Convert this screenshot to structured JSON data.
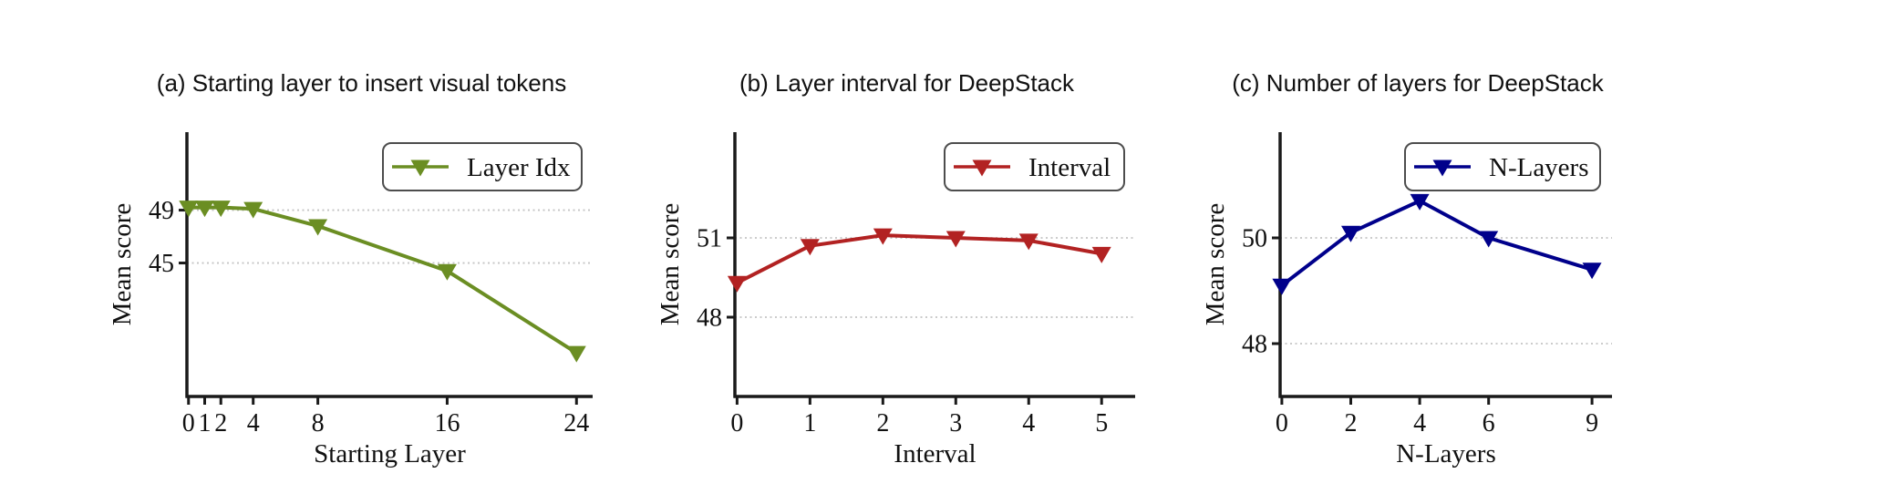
{
  "figure": {
    "background": "#ffffff",
    "axis_color": "#1a1a1a",
    "grid_color": "#c4c4c4",
    "legend_border_color": "#4d4d4d",
    "text_color": "#111111"
  },
  "chart_data": [
    {
      "type": "line",
      "panel": "a",
      "title": "(a) Starting layer to insert visual tokens",
      "xlabel": "Starting Layer",
      "ylabel": "Mean score",
      "x": [
        0,
        1,
        2,
        4,
        8,
        16,
        24
      ],
      "series": [
        {
          "name": "Layer Idx",
          "values": [
            49.2,
            49.2,
            49.2,
            49.1,
            47.8,
            44.4,
            38.2
          ]
        }
      ],
      "xticks": [
        0,
        1,
        2,
        4,
        8,
        16,
        24
      ],
      "yticks": [
        49,
        45
      ],
      "xlim": [
        -0.1,
        25.0
      ],
      "ylim": [
        34.9,
        54.9
      ],
      "color": "#6b8e23",
      "marker": "triangle-down",
      "grid": "horizontal-dashed",
      "legend_position": "upper-right"
    },
    {
      "type": "line",
      "panel": "b",
      "title": "(b) Layer interval for DeepStack",
      "xlabel": "Interval",
      "ylabel": "Mean score",
      "x": [
        0,
        1,
        2,
        3,
        4,
        5
      ],
      "series": [
        {
          "name": "Interval",
          "values": [
            49.3,
            50.7,
            51.1,
            51.0,
            50.9,
            50.4
          ]
        }
      ],
      "xticks": [
        0,
        1,
        2,
        3,
        4,
        5
      ],
      "yticks": [
        51,
        48
      ],
      "xlim": [
        -0.03,
        5.46
      ],
      "ylim": [
        45.0,
        55.0
      ],
      "color": "#b22222",
      "marker": "triangle-down",
      "grid": "horizontal-dashed",
      "legend_position": "upper-right"
    },
    {
      "type": "line",
      "panel": "c",
      "title": "(c) Number of layers for DeepStack",
      "xlabel": "N-Layers",
      "ylabel": "Mean score",
      "x": [
        0,
        2,
        4,
        6,
        9
      ],
      "series": [
        {
          "name": "N-Layers",
          "values": [
            49.1,
            50.1,
            50.7,
            50.0,
            49.4
          ]
        }
      ],
      "xticks": [
        0,
        2,
        4,
        6,
        9
      ],
      "yticks": [
        50,
        48
      ],
      "xlim": [
        -0.05,
        9.58
      ],
      "ylim": [
        47.0,
        52.0
      ],
      "color": "#00008b",
      "marker": "triangle-down",
      "grid": "horizontal-dashed",
      "legend_position": "upper-right"
    }
  ]
}
